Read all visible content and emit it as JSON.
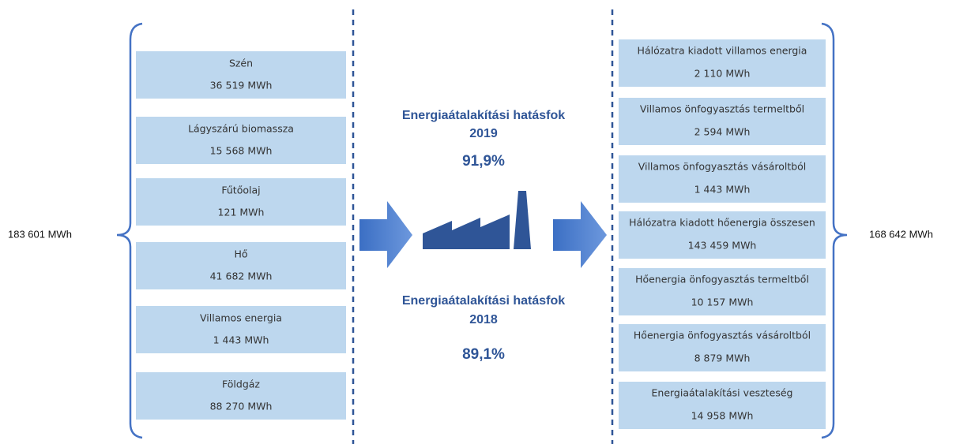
{
  "input_total": "183 601 MWh",
  "output_total": "168 642 MWh",
  "inputs": [
    {
      "label": "Szén",
      "value": "36 519 MWh"
    },
    {
      "label": "Lágyszárú biomassza",
      "value": "15 568 MWh"
    },
    {
      "label": "Fűtőolaj",
      "value": "121 MWh"
    },
    {
      "label": "Hő",
      "value": "41 682 MWh"
    },
    {
      "label": "Villamos energia",
      "value": "1 443 MWh"
    },
    {
      "label": "Földgáz",
      "value": "88 270 MWh"
    }
  ],
  "outputs": [
    {
      "label": "Hálózatra kiadott villamos energia",
      "value": "2 110 MWh"
    },
    {
      "label": "Villamos önfogyasztás termeltből",
      "value": "2 594 MWh"
    },
    {
      "label": "Villamos önfogyasztás vásároltból",
      "value": "1 443 MWh"
    },
    {
      "label": "Hálózatra kiadott hőenergia összesen",
      "value": "143 459 MWh"
    },
    {
      "label": "Hőenergia önfogyasztás termeltből",
      "value": "10 157 MWh"
    },
    {
      "label": "Hőenergia önfogyasztás vásároltból",
      "value": "8 879 MWh"
    },
    {
      "label": "Energiaátalakítási veszteség",
      "value": "14 958 MWh"
    }
  ],
  "efficiency": [
    {
      "title": "Energiaátalakítási hatásfok",
      "year": "2019",
      "value": "91,9%"
    },
    {
      "title": "Energiaátalakítási hatásfok",
      "year": "2018",
      "value": "89,1%"
    }
  ]
}
